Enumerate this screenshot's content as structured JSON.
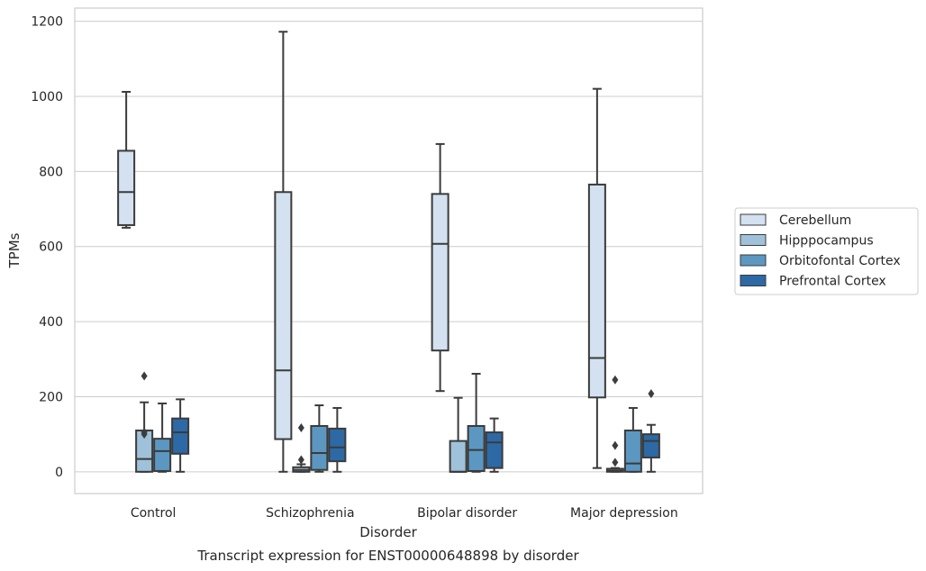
{
  "chart_data": {
    "type": "boxplot",
    "title": "Transcript expression for ENST00000648898 by disorder",
    "xlabel": "Disorder",
    "ylabel": "TPMs",
    "ylim": [
      -58,
      1235
    ],
    "yticks": [
      0,
      200,
      400,
      600,
      800,
      1000,
      1200
    ],
    "grid": true,
    "legend_position": "right",
    "categories": [
      "Control",
      "Schizophrenia",
      "Bipolar disorder",
      "Major depression"
    ],
    "series": [
      {
        "name": "Cerebellum",
        "color": "#d3e1f0",
        "boxes": [
          {
            "whislo": 650,
            "q1": 657,
            "med": 745,
            "q3": 855,
            "whishi": 1012,
            "fliers": []
          },
          {
            "whislo": 0,
            "q1": 87,
            "med": 270,
            "q3": 745,
            "whishi": 1172,
            "fliers": []
          },
          {
            "whislo": 215,
            "q1": 323,
            "med": 607,
            "q3": 740,
            "whishi": 873,
            "fliers": []
          },
          {
            "whislo": 10,
            "q1": 198,
            "med": 303,
            "q3": 765,
            "whishi": 1020,
            "fliers": []
          }
        ]
      },
      {
        "name": "Hipppocampus",
        "color": "#9fc2da",
        "boxes": [
          {
            "whislo": 0,
            "q1": 0,
            "med": 34,
            "q3": 110,
            "whishi": 185,
            "fliers": [
              100,
              105,
              255
            ]
          },
          {
            "whislo": 0,
            "q1": 0,
            "med": 5,
            "q3": 12,
            "whishi": 20,
            "fliers": [
              32,
              117
            ]
          },
          {
            "whislo": 0,
            "q1": 0,
            "med": 0,
            "q3": 82,
            "whishi": 197,
            "fliers": []
          },
          {
            "whislo": 0,
            "q1": 0,
            "med": 3,
            "q3": 8,
            "whishi": 10,
            "fliers": [
              25,
              70,
              245
            ]
          }
        ]
      },
      {
        "name": "Orbitofontal Cortex",
        "color": "#5b97c1",
        "boxes": [
          {
            "whislo": 0,
            "q1": 2,
            "med": 55,
            "q3": 88,
            "whishi": 182,
            "fliers": []
          },
          {
            "whislo": 0,
            "q1": 5,
            "med": 50,
            "q3": 122,
            "whishi": 177,
            "fliers": []
          },
          {
            "whislo": 0,
            "q1": 2,
            "med": 58,
            "q3": 122,
            "whishi": 261,
            "fliers": []
          },
          {
            "whislo": 0,
            "q1": 0,
            "med": 22,
            "q3": 110,
            "whishi": 170,
            "fliers": []
          }
        ]
      },
      {
        "name": "Prefrontal Cortex",
        "color": "#2c69a5",
        "boxes": [
          {
            "whislo": 0,
            "q1": 48,
            "med": 105,
            "q3": 142,
            "whishi": 193,
            "fliers": []
          },
          {
            "whislo": 0,
            "q1": 28,
            "med": 65,
            "q3": 115,
            "whishi": 170,
            "fliers": []
          },
          {
            "whislo": 0,
            "q1": 10,
            "med": 78,
            "q3": 105,
            "whishi": 142,
            "fliers": []
          },
          {
            "whislo": 0,
            "q1": 38,
            "med": 82,
            "q3": 100,
            "whishi": 125,
            "fliers": [
              208
            ]
          }
        ]
      }
    ]
  }
}
